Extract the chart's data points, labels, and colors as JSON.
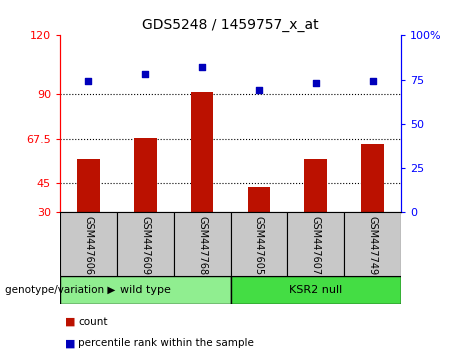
{
  "title": "GDS5248 / 1459757_x_at",
  "samples": [
    "GSM447606",
    "GSM447609",
    "GSM447768",
    "GSM447605",
    "GSM447607",
    "GSM447749"
  ],
  "counts": [
    57,
    68,
    91,
    43,
    57,
    65
  ],
  "percentile_ranks": [
    74,
    78,
    82,
    69,
    73,
    74
  ],
  "groups": [
    "wild type",
    "wild type",
    "wild type",
    "KSR2 null",
    "KSR2 null",
    "KSR2 null"
  ],
  "bar_color": "#BB1100",
  "dot_color": "#0000BB",
  "left_yticks": [
    30,
    45,
    67.5,
    90,
    120
  ],
  "left_ylim": [
    30,
    120
  ],
  "right_yticks": [
    0,
    25,
    50,
    75,
    100
  ],
  "right_ylim": [
    0,
    100
  ],
  "hlines": [
    45,
    67.5,
    90
  ],
  "legend_count_label": "count",
  "legend_percentile_label": "percentile rank within the sample",
  "genotype_label": "genotype/variation",
  "wild_type_color": "#90EE90",
  "ksr2_color": "#44DD44",
  "sample_box_color": "#C8C8C8"
}
